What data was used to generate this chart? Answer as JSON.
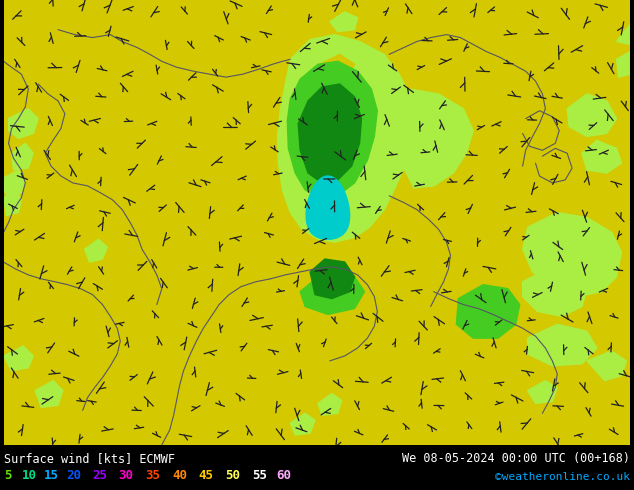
{
  "title_left": "Surface wind [kts] ECMWF",
  "title_right": "We 08-05-2024 00:00 UTC (00+168)",
  "watermark": "©weatheronline.co.uk",
  "legend_values": [
    5,
    10,
    15,
    20,
    25,
    30,
    35,
    40,
    45,
    50,
    55,
    60
  ],
  "legend_colors": [
    "#66dd00",
    "#00dd88",
    "#00aaff",
    "#0055ff",
    "#9900ff",
    "#ff00cc",
    "#ff4400",
    "#ff8800",
    "#ffcc00",
    "#ffff55",
    "#ffffff",
    "#ffaaff"
  ],
  "bg_color": "#d4c800",
  "figsize": [
    6.34,
    4.9
  ],
  "dpi": 100,
  "map_yellow": "#d4c800",
  "light_green": "#aaee44",
  "med_green": "#44cc22",
  "dark_green": "#118811",
  "cyan_color": "#00cccc",
  "border_color": "#555566"
}
